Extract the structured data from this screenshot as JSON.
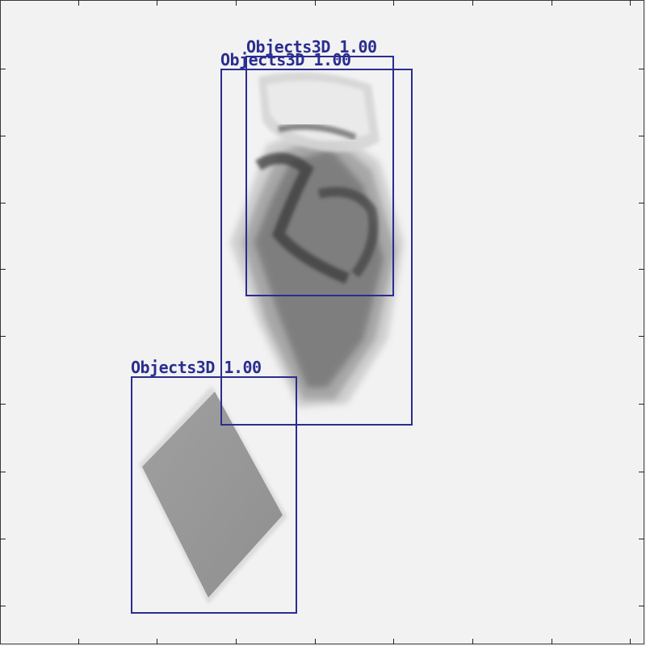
{
  "detections": [
    {
      "label": "Objects3D",
      "score": "1.00"
    },
    {
      "label": "Objects3D",
      "score": "1.00"
    },
    {
      "label": "Objects3D",
      "score": "1.00"
    }
  ],
  "colors": {
    "background": "#f2f2f2",
    "box": "#2a2d8f",
    "frame": "#3a3a3a"
  }
}
